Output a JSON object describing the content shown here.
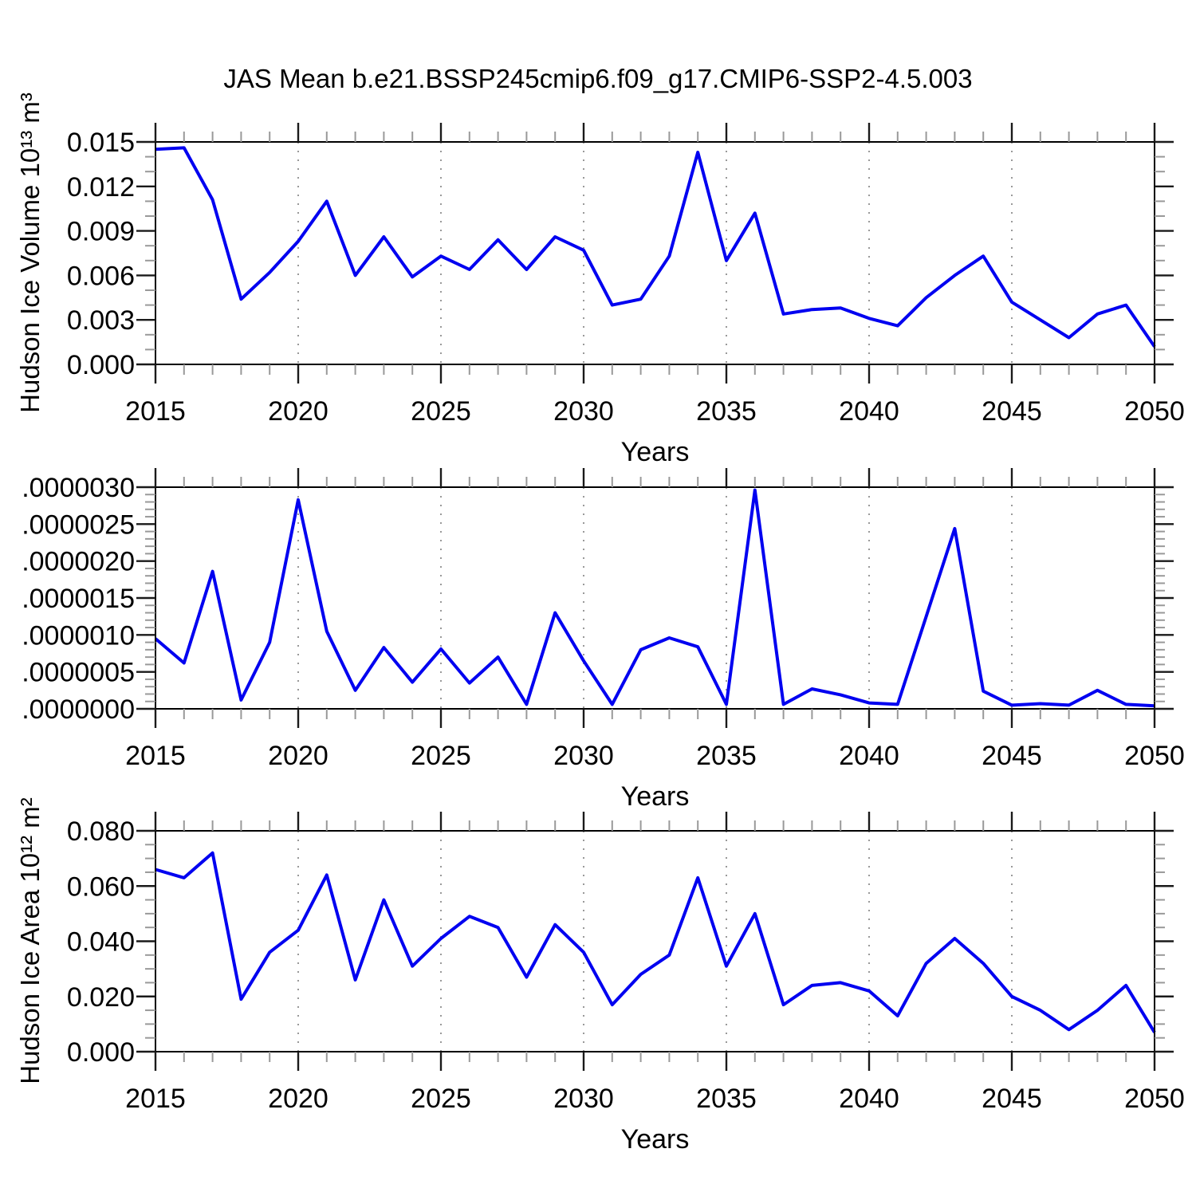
{
  "figure": {
    "title": "JAS Mean b.e21.BSSP245cmip6.f09_g17.CMIP6-SSP2-4.5.003"
  },
  "chart_data": [
    {
      "type": "line",
      "title": "",
      "ylabel": "Hudson Ice Volume 10¹³ m³",
      "xlabel": "Years",
      "line_color": "#0000f0",
      "grid": "vertical-dashed",
      "legend_position": "none",
      "xlim": [
        2015,
        2050
      ],
      "ylim": [
        0,
        0.015
      ],
      "xminor_step": 1,
      "yminor_step": 0.001,
      "vlines": [
        2020,
        2025,
        2030,
        2035,
        2040,
        2045
      ],
      "xticks": [
        {
          "label": "2015",
          "value": 2015
        },
        {
          "label": "2020",
          "value": 2020
        },
        {
          "label": "2025",
          "value": 2025
        },
        {
          "label": "2030",
          "value": 2030
        },
        {
          "label": "2035",
          "value": 2035
        },
        {
          "label": "2040",
          "value": 2040
        },
        {
          "label": "2045",
          "value": 2045
        },
        {
          "label": "2050",
          "value": 2050
        }
      ],
      "yticks": [
        {
          "label": "0.000",
          "value": 0.0
        },
        {
          "label": "0.003",
          "value": 0.003
        },
        {
          "label": "0.006",
          "value": 0.006
        },
        {
          "label": "0.009",
          "value": 0.009
        },
        {
          "label": "0.012",
          "value": 0.012
        },
        {
          "label": "0.015",
          "value": 0.015
        }
      ],
      "x": [
        2015,
        2016,
        2017,
        2018,
        2019,
        2020,
        2021,
        2022,
        2023,
        2024,
        2025,
        2026,
        2027,
        2028,
        2029,
        2030,
        2031,
        2032,
        2033,
        2034,
        2035,
        2036,
        2037,
        2038,
        2039,
        2040,
        2041,
        2042,
        2043,
        2044,
        2045,
        2046,
        2047,
        2048,
        2049,
        2050
      ],
      "values": [
        0.0145,
        0.0146,
        0.0111,
        0.0044,
        0.0062,
        0.0083,
        0.011,
        0.006,
        0.0086,
        0.0059,
        0.0073,
        0.0064,
        0.0084,
        0.0064,
        0.0086,
        0.0077,
        0.004,
        0.0044,
        0.0073,
        0.0143,
        0.007,
        0.0102,
        0.0034,
        0.0037,
        0.0038,
        0.0031,
        0.0026,
        0.0045,
        0.006,
        0.0073,
        0.0042,
        0.003,
        0.0018,
        0.0034,
        0.004,
        0.0012
      ]
    },
    {
      "type": "line",
      "title": "",
      "ylabel": "",
      "xlabel": "Years",
      "line_color": "#0000f0",
      "grid": "vertical-dashed",
      "legend_position": "none",
      "xlim": [
        2015,
        2050
      ],
      "ylim": [
        0,
        3e-06
      ],
      "xminor_step": 1,
      "yminor_step": 1e-07,
      "vlines": [
        2020,
        2025,
        2030,
        2035,
        2040,
        2045
      ],
      "xticks": [
        {
          "label": "2015",
          "value": 2015
        },
        {
          "label": "2020",
          "value": 2020
        },
        {
          "label": "2025",
          "value": 2025
        },
        {
          "label": "2030",
          "value": 2030
        },
        {
          "label": "2035",
          "value": 2035
        },
        {
          "label": "2040",
          "value": 2040
        },
        {
          "label": "2045",
          "value": 2045
        },
        {
          "label": "2050",
          "value": 2050
        }
      ],
      "yticks": [
        {
          "label": ".0000000",
          "value": 0.0
        },
        {
          "label": ".0000005",
          "value": 5e-07
        },
        {
          "label": ".0000010",
          "value": 1e-06
        },
        {
          "label": ".0000015",
          "value": 1.5e-06
        },
        {
          "label": ".0000020",
          "value": 2e-06
        },
        {
          "label": ".0000025",
          "value": 2.5e-06
        },
        {
          "label": ".0000030",
          "value": 3e-06
        }
      ],
      "x": [
        2015,
        2016,
        2017,
        2018,
        2019,
        2020,
        2021,
        2022,
        2023,
        2024,
        2025,
        2026,
        2027,
        2028,
        2029,
        2030,
        2031,
        2032,
        2033,
        2034,
        2035,
        2036,
        2037,
        2038,
        2039,
        2040,
        2041,
        2042,
        2043,
        2044,
        2045,
        2046,
        2047,
        2048,
        2049,
        2050
      ],
      "values": [
        9.5e-07,
        6.2e-07,
        1.86e-06,
        1.2e-07,
        9e-07,
        2.83e-06,
        1.05e-06,
        2.5e-07,
        8.3e-07,
        3.6e-07,
        8.1e-07,
        3.5e-07,
        7e-07,
        6e-08,
        1.3e-06,
        6.5e-07,
        6e-08,
        8e-07,
        9.6e-07,
        8.4e-07,
        6e-08,
        2.96e-06,
        6e-08,
        2.7e-07,
        1.9e-07,
        8e-08,
        6e-08,
        1.25e-06,
        2.44e-06,
        2.4e-07,
        5e-08,
        7e-08,
        5e-08,
        2.5e-07,
        6e-08,
        4e-08
      ]
    },
    {
      "type": "line",
      "title": "",
      "ylabel": "Hudson Ice Area 10¹² m²",
      "xlabel": "Years",
      "line_color": "#0000f0",
      "grid": "vertical-dashed",
      "legend_position": "none",
      "xlim": [
        2015,
        2050
      ],
      "ylim": [
        0,
        0.08
      ],
      "xminor_step": 1,
      "yminor_step": 0.005,
      "vlines": [
        2020,
        2025,
        2030,
        2035,
        2040,
        2045
      ],
      "xticks": [
        {
          "label": "2015",
          "value": 2015
        },
        {
          "label": "2020",
          "value": 2020
        },
        {
          "label": "2025",
          "value": 2025
        },
        {
          "label": "2030",
          "value": 2030
        },
        {
          "label": "2035",
          "value": 2035
        },
        {
          "label": "2040",
          "value": 2040
        },
        {
          "label": "2045",
          "value": 2045
        },
        {
          "label": "2050",
          "value": 2050
        }
      ],
      "yticks": [
        {
          "label": "0.000",
          "value": 0.0
        },
        {
          "label": "0.020",
          "value": 0.02
        },
        {
          "label": "0.040",
          "value": 0.04
        },
        {
          "label": "0.060",
          "value": 0.06
        },
        {
          "label": "0.080",
          "value": 0.08
        }
      ],
      "x": [
        2015,
        2016,
        2017,
        2018,
        2019,
        2020,
        2021,
        2022,
        2023,
        2024,
        2025,
        2026,
        2027,
        2028,
        2029,
        2030,
        2031,
        2032,
        2033,
        2034,
        2035,
        2036,
        2037,
        2038,
        2039,
        2040,
        2041,
        2042,
        2043,
        2044,
        2045,
        2046,
        2047,
        2048,
        2049,
        2050
      ],
      "values": [
        0.066,
        0.063,
        0.072,
        0.019,
        0.036,
        0.044,
        0.064,
        0.026,
        0.055,
        0.031,
        0.041,
        0.049,
        0.045,
        0.027,
        0.046,
        0.036,
        0.017,
        0.028,
        0.035,
        0.063,
        0.031,
        0.05,
        0.017,
        0.024,
        0.025,
        0.022,
        0.013,
        0.032,
        0.041,
        0.032,
        0.02,
        0.015,
        0.008,
        0.015,
        0.024,
        0.007
      ]
    }
  ]
}
